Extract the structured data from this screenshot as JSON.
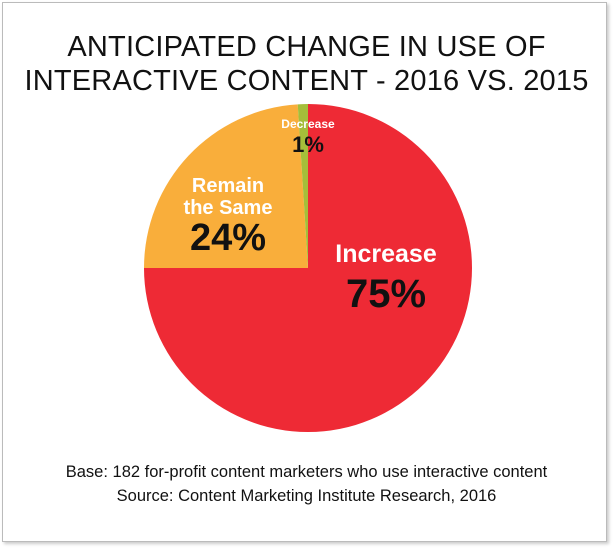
{
  "chart_data": {
    "type": "pie",
    "title_lines": [
      "ANTICIPATED CHANGE IN USE OF",
      "INTERACTIVE CONTENT - 2016 VS. 2015"
    ],
    "slices": [
      {
        "label_lines": [
          "Increase"
        ],
        "value": 75,
        "value_label": "75%",
        "color": "#EE2A35"
      },
      {
        "label_lines": [
          "Remain",
          "the Same"
        ],
        "value": 24,
        "value_label": "24%",
        "color": "#F9AE3B"
      },
      {
        "label_lines": [
          "Decrease"
        ],
        "value": 1,
        "value_label": "1%",
        "color": "#A5BE3A"
      }
    ],
    "start_angle": "12 o'clock",
    "direction": "clockwise",
    "legend": "none"
  },
  "footnotes": [
    "Base: 182 for-profit content marketers who use interactive content",
    "Source: Content Marketing Institute Research, 2016"
  ]
}
